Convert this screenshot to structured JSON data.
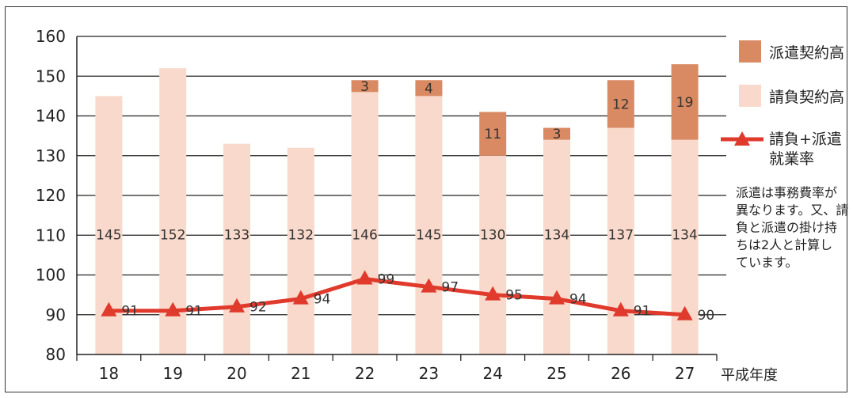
{
  "chart_data": {
    "type": "bar",
    "categories": [
      "18",
      "19",
      "20",
      "21",
      "22",
      "23",
      "24",
      "25",
      "26",
      "27"
    ],
    "series": [
      {
        "name": "請負契約高",
        "type": "bar",
        "stacked": true,
        "values": [
          145,
          152,
          133,
          132,
          146,
          145,
          130,
          134,
          137,
          134
        ]
      },
      {
        "name": "派遣契約高",
        "type": "bar",
        "stacked": true,
        "values": [
          null,
          null,
          null,
          null,
          3,
          4,
          11,
          3,
          12,
          19
        ]
      },
      {
        "name": "請負+派遣就業率",
        "type": "line",
        "marker": "triangle",
        "values": [
          91,
          91,
          92,
          94,
          99,
          97,
          95,
          94,
          91,
          90
        ]
      }
    ],
    "xlabel": "平成年度",
    "ylim": [
      80,
      160
    ],
    "yticks": [
      80,
      90,
      100,
      110,
      120,
      130,
      140,
      150,
      160
    ],
    "grid": true,
    "legend_position": "right",
    "colors": {
      "haken": "#d98a62",
      "ukeoi": "#f8d9cb",
      "line": "#e03a2c"
    }
  },
  "legend": {
    "haken_label": "派遣契約高",
    "ukeoi_label": "請負契約高",
    "rate_label_line1": "請負+派遣",
    "rate_label_line2": "就業率"
  },
  "note": {
    "lines": [
      "派遣は事務費率が",
      "異なります。又、請",
      "負と派遣の掛け持",
      "ちは2人と計算し",
      "ています。"
    ]
  }
}
